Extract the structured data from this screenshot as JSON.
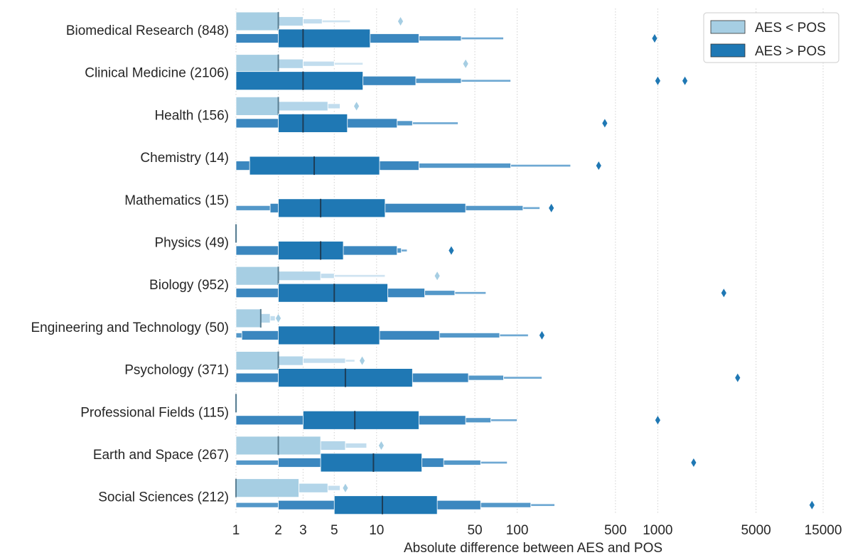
{
  "chart_data": {
    "type": "boxen",
    "orientation": "horizontal",
    "title": "",
    "xlabel": "Absolute difference between AES and POS",
    "ylabel": "",
    "xscale": "log",
    "xlim": [
      1,
      20000
    ],
    "xticks": [
      1,
      2,
      3,
      5,
      10,
      50,
      100,
      500,
      1000,
      5000,
      15000
    ],
    "xtick_labels": [
      "1",
      "2",
      "3",
      "5",
      "10",
      "50",
      "100",
      "500",
      "1000",
      "5000",
      "15000"
    ],
    "grid": "vertical dotted lines",
    "legend_position": "top-right",
    "hue_order": [
      "AES < POS",
      "AES > POS"
    ],
    "colors": {
      "AES < POS": "#a6cee3",
      "AES > POS": "#1f78b4"
    },
    "categories": [
      "Biomedical Research (848)",
      "Clinical Medicine (2106)",
      "Health (156)",
      "Chemistry (14)",
      "Mathematics (15)",
      "Physics (49)",
      "Biology (952)",
      "Engineering and Technology (50)",
      "Psychology (371)",
      "Professional Fields (115)",
      "Earth and Space (267)",
      "Social Sciences (212)"
    ],
    "series": [
      {
        "name": "AES < POS",
        "groups": [
          {
            "median": 2,
            "levels": [
              [
                1,
                2
              ],
              [
                2,
                3
              ],
              [
                3,
                4.1
              ],
              [
                4.1,
                6.5
              ]
            ],
            "outliers": [
              14.8
            ]
          },
          {
            "median": 2,
            "levels": [
              [
                1,
                2
              ],
              [
                2,
                3
              ],
              [
                3,
                5
              ],
              [
                5,
                8
              ]
            ],
            "outliers": [
              43
            ]
          },
          {
            "median": 2,
            "levels": [
              [
                1,
                2
              ],
              [
                2,
                4.5
              ],
              [
                4.5,
                5.5
              ]
            ],
            "outliers": [
              7.2
            ]
          },
          null,
          null,
          {
            "median": 1,
            "levels": [
              [
                1,
                1.02
              ]
            ],
            "outliers": []
          },
          {
            "median": 2,
            "levels": [
              [
                1,
                2
              ],
              [
                2,
                4
              ],
              [
                4,
                5
              ],
              [
                5,
                11.5
              ]
            ],
            "outliers": [
              27
            ]
          },
          {
            "median": 1.5,
            "levels": [
              [
                1,
                1.5
              ],
              [
                1.5,
                1.75
              ],
              [
                1.75,
                1.9
              ]
            ],
            "outliers": [
              2
            ]
          },
          {
            "median": 2,
            "levels": [
              [
                1,
                2
              ],
              [
                2,
                3
              ],
              [
                3,
                6
              ],
              [
                6,
                7
              ]
            ],
            "outliers": [
              7.9
            ]
          },
          {
            "median": 1,
            "levels": [
              [
                1,
                1.02
              ]
            ],
            "outliers": []
          },
          {
            "median": 2,
            "levels": [
              [
                1,
                4
              ],
              [
                4,
                6
              ],
              [
                6,
                8.5
              ]
            ],
            "outliers": [
              10.8
            ]
          },
          {
            "median": 1,
            "levels": [
              [
                1,
                2.8
              ],
              [
                2.8,
                4.5
              ],
              [
                4.5,
                5.5
              ]
            ],
            "outliers": [
              6
            ]
          }
        ]
      },
      {
        "name": "AES > POS",
        "groups": [
          {
            "median": 3,
            "levels": [
              [
                2,
                9
              ],
              [
                1,
                20
              ],
              [
                20,
                40
              ],
              [
                40,
                80
              ]
            ],
            "outliers": [
              950
            ]
          },
          {
            "median": 3,
            "levels": [
              [
                1,
                8
              ],
              [
                8,
                19
              ],
              [
                19,
                40
              ],
              [
                40,
                90
              ]
            ],
            "outliers": [
              1000,
              1560
            ]
          },
          {
            "median": 3,
            "levels": [
              [
                2,
                6.2
              ],
              [
                1,
                14
              ],
              [
                14,
                18
              ],
              [
                18,
                38
              ]
            ],
            "outliers": [
              420
            ]
          },
          {
            "median": 3.6,
            "levels": [
              [
                1.25,
                10.5
              ],
              [
                1,
                20
              ],
              [
                20,
                90
              ],
              [
                90,
                240
              ]
            ],
            "outliers": [
              380
            ]
          },
          {
            "median": 4,
            "levels": [
              [
                2,
                11.5
              ],
              [
                1.75,
                43
              ],
              [
                1,
                110
              ],
              [
                110,
                145
              ]
            ],
            "outliers": [
              175
            ]
          },
          {
            "median": 4,
            "levels": [
              [
                2,
                5.8
              ],
              [
                1,
                14
              ],
              [
                14,
                15
              ],
              [
                15,
                16.5
              ]
            ],
            "outliers": [
              34
            ]
          },
          {
            "median": 5,
            "levels": [
              [
                2,
                12
              ],
              [
                1,
                22
              ],
              [
                22,
                36
              ],
              [
                36,
                60
              ]
            ],
            "outliers": [
              2950
            ]
          },
          {
            "median": 5,
            "levels": [
              [
                2,
                10.5
              ],
              [
                1.1,
                28
              ],
              [
                1,
                75
              ],
              [
                75,
                120
              ]
            ],
            "outliers": [
              150
            ]
          },
          {
            "median": 6,
            "levels": [
              [
                2,
                18
              ],
              [
                1,
                45
              ],
              [
                45,
                80
              ],
              [
                80,
                150
              ]
            ],
            "outliers": [
              3700
            ]
          },
          {
            "median": 7,
            "levels": [
              [
                3,
                20
              ],
              [
                1,
                43
              ],
              [
                43,
                65
              ],
              [
                65,
                100
              ]
            ],
            "outliers": [
              1000
            ]
          },
          {
            "median": 9.5,
            "levels": [
              [
                4,
                21
              ],
              [
                2,
                30
              ],
              [
                1,
                55
              ],
              [
                55,
                85
              ]
            ],
            "outliers": [
              1800
            ]
          },
          {
            "median": 11,
            "levels": [
              [
                5,
                27
              ],
              [
                2,
                55
              ],
              [
                1,
                125
              ],
              [
                125,
                185
              ]
            ],
            "outliers": [
              12500
            ]
          }
        ]
      }
    ]
  }
}
